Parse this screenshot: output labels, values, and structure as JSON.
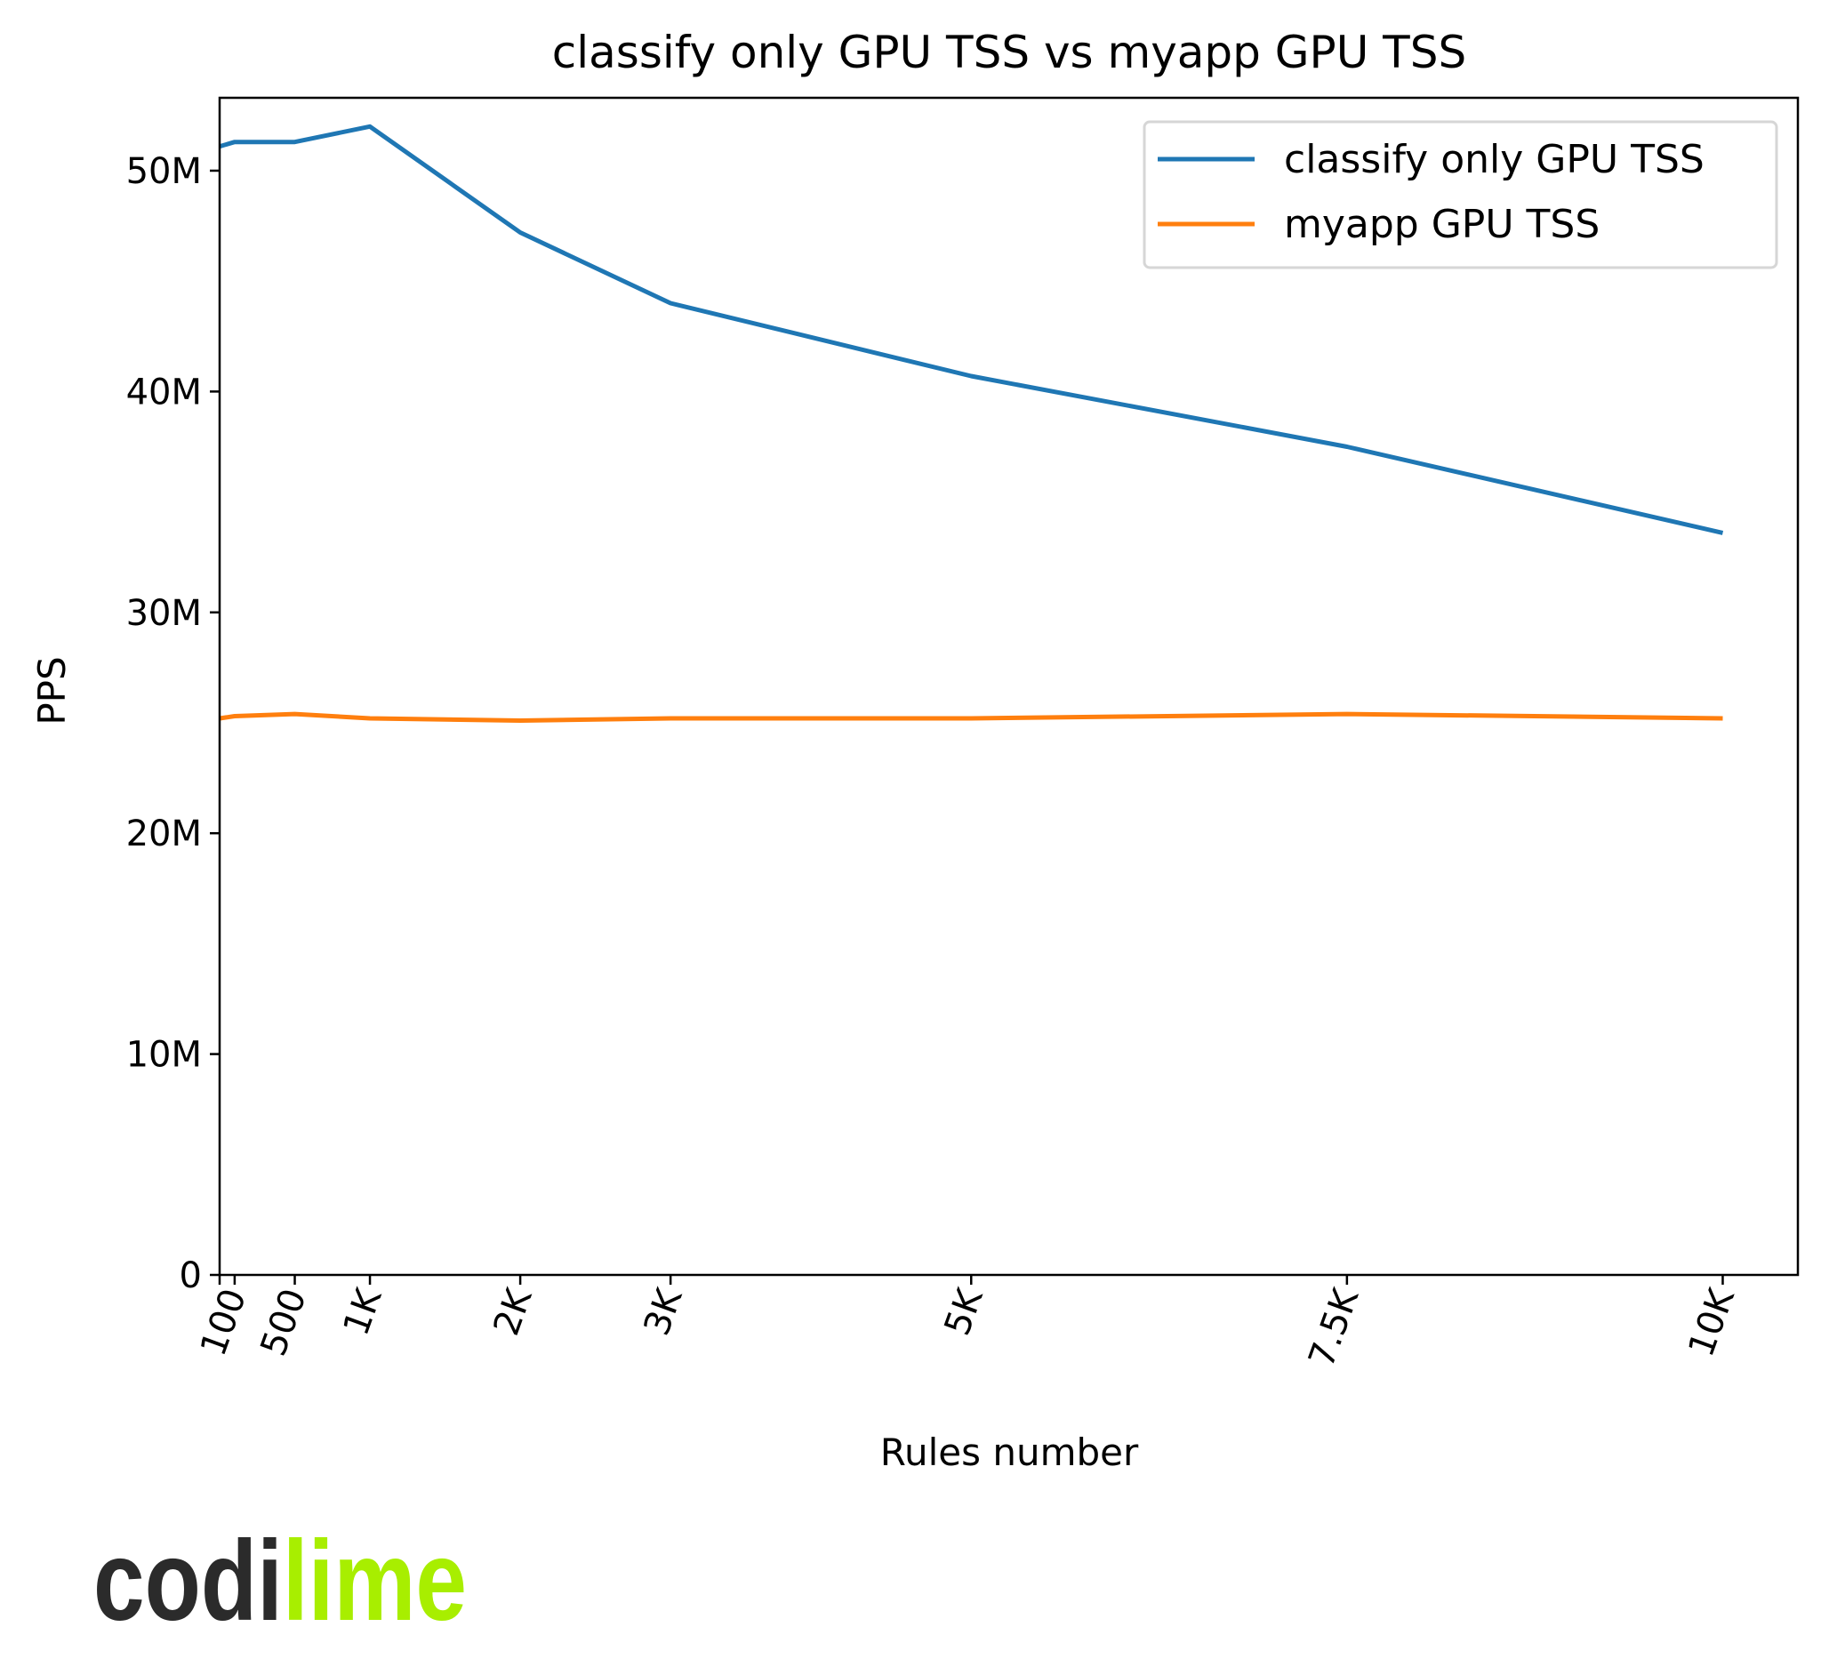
{
  "chart_data": {
    "type": "line",
    "title": "classify only GPU TSS vs myapp GPU TSS",
    "xlabel": "Rules number",
    "ylabel": "PPS",
    "x": [
      1,
      100,
      500,
      1000,
      2000,
      3000,
      5000,
      7500,
      10000
    ],
    "xlim": [
      0,
      10500
    ],
    "ylim": [
      0,
      53300000
    ],
    "xticks": [
      100,
      500,
      1000,
      2000,
      3000,
      5000,
      7500,
      10000
    ],
    "xtick_labels": [
      "100",
      "500",
      "1K",
      "2K",
      "3K",
      "5K",
      "7.5K",
      "10K"
    ],
    "yticks": [
      0,
      10000000,
      20000000,
      30000000,
      40000000,
      50000000
    ],
    "ytick_labels": [
      "0",
      "10M",
      "20M",
      "30M",
      "40M",
      "50M"
    ],
    "grid": false,
    "legend_position": "top-right",
    "series": [
      {
        "name": "classify only GPU TSS",
        "color": "#1f77b4",
        "values": [
          51100000,
          51300000,
          51300000,
          52000000,
          47200000,
          44000000,
          40700000,
          37500000,
          33600000
        ]
      },
      {
        "name": "myapp GPU TSS",
        "color": "#ff7f0e",
        "values": [
          25200000,
          25300000,
          25400000,
          25200000,
          25100000,
          25200000,
          25200000,
          25400000,
          25200000
        ]
      }
    ]
  },
  "logo": {
    "part1": "codi",
    "part2": "lime",
    "color1": "#2b2b2b",
    "color2": "#a8ee00"
  }
}
